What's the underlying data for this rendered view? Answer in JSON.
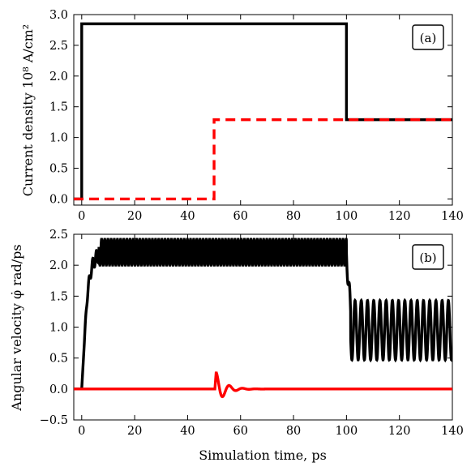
{
  "figure": {
    "xlabel": "Simulation time, ps"
  },
  "chart_data": [
    {
      "type": "line",
      "panel_label": "(a)",
      "ylabel": "Current density 10⁸ A/cm²",
      "xlim": [
        -3,
        140
      ],
      "ylim": [
        -0.1,
        3.0
      ],
      "xticks": [
        "0",
        "20",
        "40",
        "60",
        "80",
        "100",
        "120",
        "140"
      ],
      "xtick_values": [
        0,
        20,
        40,
        60,
        80,
        100,
        120,
        140
      ],
      "yticks": [
        "0.0",
        "0.5",
        "1.0",
        "1.5",
        "2.0",
        "2.5",
        "3.0"
      ],
      "ytick_values": [
        0.0,
        0.5,
        1.0,
        1.5,
        2.0,
        2.5,
        3.0
      ],
      "grid": false,
      "legend": "none",
      "series": [
        {
          "color": "#000000",
          "style": "solid",
          "x": [
            -3,
            0,
            0,
            100,
            100,
            140
          ],
          "y": [
            0,
            0,
            2.85,
            2.85,
            1.29,
            1.29
          ]
        },
        {
          "color": "#ff0000",
          "style": "dashed",
          "x": [
            -3,
            50,
            50,
            140
          ],
          "y": [
            0,
            0,
            1.29,
            1.29
          ]
        }
      ]
    },
    {
      "type": "line",
      "panel_label": "(b)",
      "ylabel": "Angular velocity φ̇ rad/ps",
      "xlim": [
        -3,
        140
      ],
      "ylim": [
        -0.5,
        2.5
      ],
      "xticks": [
        "0",
        "20",
        "40",
        "60",
        "80",
        "100",
        "120",
        "140"
      ],
      "xtick_values": [
        0,
        20,
        40,
        60,
        80,
        100,
        120,
        140
      ],
      "yticks": [
        "−0.5",
        "0.0",
        "0.5",
        "1.0",
        "1.5",
        "2.0",
        "2.5"
      ],
      "ytick_values": [
        -0.5,
        0.0,
        0.5,
        1.0,
        1.5,
        2.0,
        2.5
      ],
      "grid": false,
      "legend": "none",
      "series": [
        {
          "color": "#000000",
          "style": "solid",
          "description": "rises from 0 at t=0 to an oscillation between ~2.0 and ~2.42 (period ~1.2 ps) until t=100, then drops to an oscillation between ~0.47 and ~1.43 (period ~2.3 ps)",
          "segments": [
            {
              "t_start": 0,
              "t_end": 100,
              "mean": 2.21,
              "amplitude": 0.21,
              "period": 1.2
            },
            {
              "t_start": 100,
              "t_end": 140,
              "mean": 0.95,
              "amplitude": 0.48,
              "period": 2.35
            }
          ]
        },
        {
          "color": "#ff0000",
          "style": "solid",
          "description": "zero except for a damped ringing after t=50 peaking at ~0.31",
          "pulse": {
            "t0": 50.3,
            "peak": 0.31,
            "period": 5.0,
            "decay": 3.2
          }
        }
      ]
    }
  ]
}
